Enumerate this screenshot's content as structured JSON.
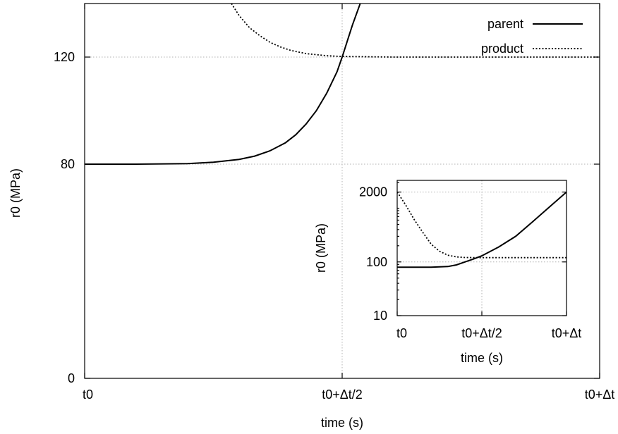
{
  "chart_data": [
    {
      "type": "line",
      "title": "",
      "xlabel": "time (s)",
      "ylabel": "r0 (MPa)",
      "x_tick_labels": [
        "t0",
        "t0+Δt/2",
        "t0+Δt"
      ],
      "x_ticks": [
        0,
        0.5,
        1
      ],
      "xlim": [
        0,
        1
      ],
      "y_ticks": [
        0,
        80,
        120
      ],
      "ylim": [
        0,
        140
      ],
      "grid": true,
      "legend_position": "top-right",
      "series": [
        {
          "name": "parent",
          "style": "solid",
          "x": [
            0.0,
            0.1,
            0.2,
            0.25,
            0.3,
            0.33,
            0.36,
            0.39,
            0.41,
            0.43,
            0.45,
            0.47,
            0.49,
            0.5,
            0.51,
            0.52,
            0.535
          ],
          "y": [
            80,
            80,
            80.2,
            80.7,
            81.8,
            83.0,
            85.0,
            88.0,
            91.0,
            95.0,
            100.0,
            106.5,
            114.5,
            120.0,
            126.0,
            132.0,
            140.0
          ]
        },
        {
          "name": "product",
          "style": "dotted",
          "x": [
            0.285,
            0.3,
            0.32,
            0.34,
            0.36,
            0.38,
            0.4,
            0.43,
            0.47,
            0.5,
            0.6,
            0.8,
            1.0
          ],
          "y": [
            140,
            135.5,
            131.0,
            128.0,
            125.5,
            123.8,
            122.5,
            121.3,
            120.5,
            120.2,
            120.0,
            120.0,
            120.0
          ]
        }
      ]
    },
    {
      "type": "line",
      "title": "",
      "xlabel": "time (s)",
      "ylabel": "r0 (MPa)",
      "x_tick_labels": [
        "t0",
        "t0+Δt/2",
        "t0+Δt"
      ],
      "x_ticks": [
        0,
        0.5,
        1
      ],
      "xlim": [
        0,
        1
      ],
      "y_tick_labels": [
        "10",
        "100",
        "2000"
      ],
      "y_ticks": [
        10,
        100,
        2000
      ],
      "ylim": [
        10,
        3300
      ],
      "y_scale": "log",
      "grid": true,
      "series": [
        {
          "name": "parent",
          "style": "solid",
          "x": [
            0.0,
            0.2,
            0.3,
            0.35,
            0.4,
            0.45,
            0.5,
            0.6,
            0.7,
            0.8,
            0.9,
            1.0
          ],
          "y": [
            80,
            80,
            82,
            88,
            100,
            113,
            130,
            190,
            300,
            560,
            1060,
            2000
          ]
        },
        {
          "name": "product",
          "style": "dotted",
          "x": [
            0.0,
            0.05,
            0.1,
            0.15,
            0.2,
            0.25,
            0.3,
            0.35,
            0.4,
            0.5,
            0.7,
            1.0
          ],
          "y": [
            2000,
            1150,
            620,
            360,
            215,
            158,
            133,
            124,
            121,
            120,
            120,
            120
          ]
        }
      ]
    }
  ]
}
